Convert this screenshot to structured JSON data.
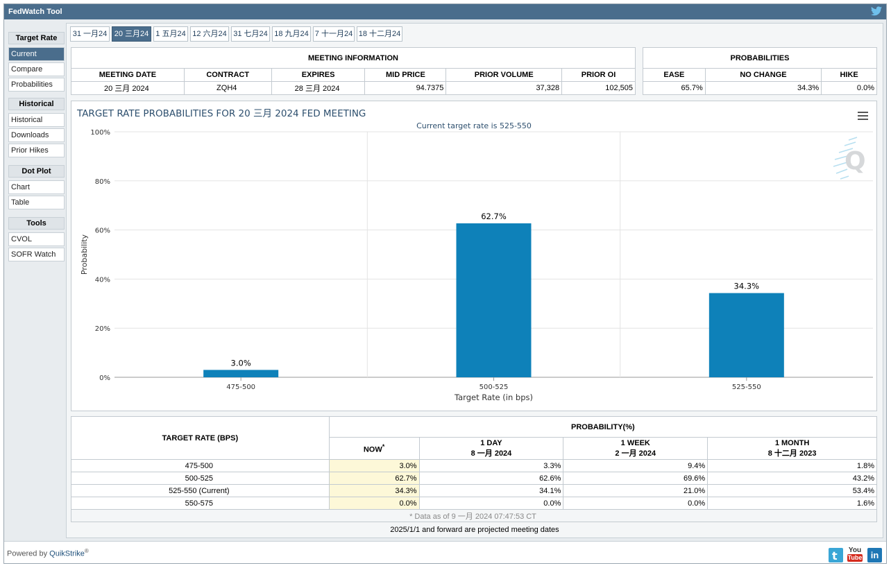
{
  "app": {
    "title": "FedWatch Tool"
  },
  "sidebar": {
    "groups": [
      {
        "header": "Target Rate",
        "items": [
          "Current",
          "Compare",
          "Probabilities"
        ]
      },
      {
        "header": "Historical",
        "items": [
          "Historical",
          "Downloads",
          "Prior Hikes"
        ]
      },
      {
        "header": "Dot Plot",
        "items": [
          "Chart",
          "Table"
        ]
      },
      {
        "header": "Tools",
        "items": [
          "CVOL",
          "SOFR Watch"
        ]
      }
    ],
    "active": "Current"
  },
  "tabs": [
    "31 一月24",
    "20 三月24",
    "1 五月24",
    "12 六月24",
    "31 七月24",
    "18 九月24",
    "7 十一月24",
    "18 十二月24"
  ],
  "active_tab": "20 三月24",
  "meeting_info": {
    "title": "MEETING INFORMATION",
    "headers": [
      "MEETING DATE",
      "CONTRACT",
      "EXPIRES",
      "MID PRICE",
      "PRIOR VOLUME",
      "PRIOR OI"
    ],
    "values": [
      "20 三月 2024",
      "ZQH4",
      "28 三月 2024",
      "94.7375",
      "37,328",
      "102,505"
    ]
  },
  "probabilities": {
    "title": "PROBABILITIES",
    "headers": [
      "EASE",
      "NO CHANGE",
      "HIKE"
    ],
    "values": [
      "65.7%",
      "34.3%",
      "0.0%"
    ]
  },
  "chart": {
    "title": "TARGET RATE PROBABILITIES FOR 20 三月 2024 FED MEETING",
    "subtitle": "Current target rate is 525-550",
    "menu_icon": "hamburger-menu-icon",
    "watermark_icon": "quikstrike-q-logo-icon",
    "bar_color": "#0e81b9"
  },
  "chart_data": {
    "type": "bar",
    "categories": [
      "475-500",
      "500-525",
      "525-550"
    ],
    "values": [
      3.0,
      62.7,
      34.3
    ],
    "data_labels": [
      "3.0%",
      "62.7%",
      "34.3%"
    ],
    "title": "TARGET RATE PROBABILITIES FOR 20 三月 2024 FED MEETING",
    "subtitle": "Current target rate is 525-550",
    "xlabel": "Target Rate (in bps)",
    "ylabel": "Probability",
    "ylim": [
      0,
      100
    ],
    "yticks": [
      "0%",
      "20%",
      "40%",
      "60%",
      "80%",
      "100%"
    ],
    "grid": true
  },
  "prob_table": {
    "rate_header": "TARGET RATE (BPS)",
    "prob_header": "PROBABILITY(%)",
    "cols": [
      {
        "line1": "NOW",
        "line2": "",
        "star": "*"
      },
      {
        "line1": "1 DAY",
        "line2": "8 一月 2024"
      },
      {
        "line1": "1 WEEK",
        "line2": "2 一月 2024"
      },
      {
        "line1": "1 MONTH",
        "line2": "8 十二月 2023"
      }
    ],
    "rows": [
      {
        "rate": "475-500",
        "vals": [
          "3.0%",
          "3.3%",
          "9.4%",
          "1.8%"
        ]
      },
      {
        "rate": "500-525",
        "vals": [
          "62.7%",
          "62.6%",
          "69.6%",
          "43.2%"
        ]
      },
      {
        "rate": "525-550 (Current)",
        "vals": [
          "34.3%",
          "34.1%",
          "21.0%",
          "53.4%"
        ]
      },
      {
        "rate": "550-575",
        "vals": [
          "0.0%",
          "0.0%",
          "0.0%",
          "1.6%"
        ]
      }
    ],
    "footnote": "* Data as of 9 一月 2024 07:47:53 CT"
  },
  "projection_note": "2025/1/1 and forward are projected meeting dates",
  "footer": {
    "powered_by": "Powered by",
    "brand": "QuikStrike",
    "reg": "®",
    "yt_top": "You",
    "yt_bottom": "Tube",
    "li": "in",
    "icons": [
      "twitter-icon",
      "youtube-icon",
      "linkedin-icon"
    ]
  }
}
